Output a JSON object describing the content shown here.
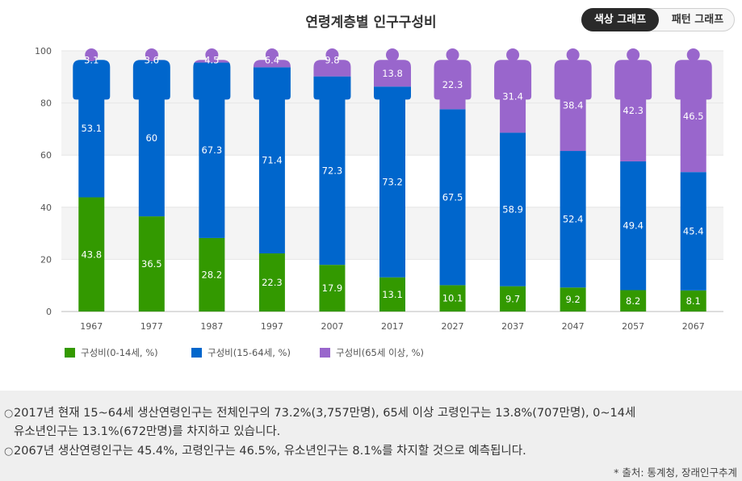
{
  "header": {
    "title": "연령계층별 인구구성비"
  },
  "toggle": {
    "color_label": "색상 그래프",
    "pattern_label": "패턴 그래프"
  },
  "chart_data": {
    "type": "bar",
    "stacked": true,
    "title": "연령계층별 인구구성비",
    "xlabel": "",
    "ylabel": "",
    "categories": [
      "1967",
      "1977",
      "1987",
      "1997",
      "2007",
      "2017",
      "2027",
      "2037",
      "2047",
      "2057",
      "2067"
    ],
    "series": [
      {
        "name": "구성비(0-14세, %)",
        "color": "#339900",
        "values": [
          43.8,
          36.5,
          28.2,
          22.3,
          17.9,
          13.1,
          10.1,
          9.7,
          9.2,
          8.2,
          8.1
        ]
      },
      {
        "name": "구성비(15-64세, %)",
        "color": "#0066cc",
        "values": [
          53.1,
          60.0,
          67.3,
          71.4,
          72.3,
          73.2,
          67.5,
          58.9,
          52.4,
          49.4,
          45.4
        ]
      },
      {
        "name": "구성비(65세 이상, %)",
        "color": "#9966cc",
        "values": [
          3.1,
          3.6,
          4.5,
          6.4,
          9.8,
          13.8,
          22.3,
          31.4,
          38.4,
          42.3,
          46.5
        ]
      }
    ],
    "ylim": [
      0,
      100
    ],
    "yticks": [
      0,
      20,
      40,
      60,
      80,
      100
    ],
    "grid": true,
    "legend": "bottom-left"
  },
  "notes": {
    "line1": "2017년 현재 15~64세 생산연령인구는 전체인구의 73.2%(3,757만명), 65세 이상 고령인구는 13.8%(707만명), 0~14세",
    "line2": "유소년인구는 13.1%(672만명)를 차지하고 있습니다.",
    "line3": "2067년 생산연령인구는 45.4%, 고령인구는 46.5%, 유소년인구는 8.1%를 차지할 것으로 예측됩니다.",
    "bullet": "○",
    "source": "* 출처: 통계청, 장래인구추계"
  }
}
